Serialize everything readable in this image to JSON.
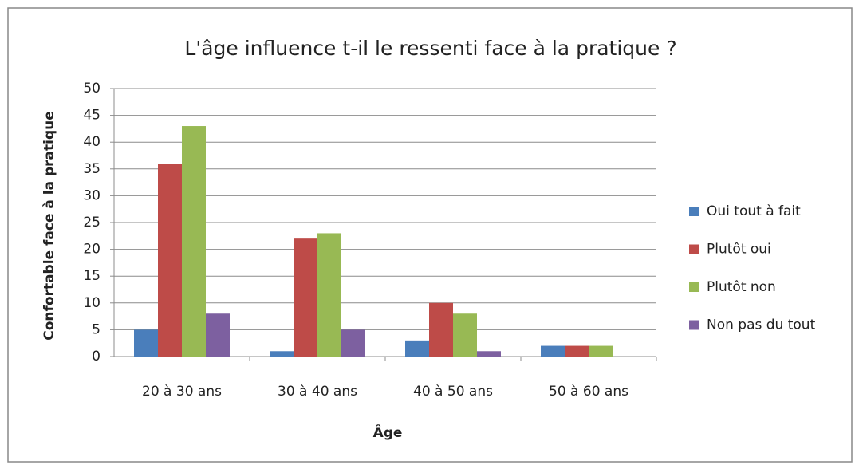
{
  "chart_data": {
    "type": "bar",
    "title": "L'âge influence t-il le ressenti face à la pratique ?",
    "x_label": "Âge",
    "y_label": "Confortable face à la pratique",
    "categories": [
      "20 à 30 ans",
      "30 à 40 ans",
      "40 à 50 ans",
      "50 à 60 ans"
    ],
    "series": [
      {
        "name": "Oui tout à fait",
        "color": "#4a7ebb",
        "values": [
          5,
          1,
          3,
          2
        ]
      },
      {
        "name": "Plutôt oui",
        "color": "#be4b48",
        "values": [
          36,
          22,
          10,
          2
        ]
      },
      {
        "name": "Plutôt non",
        "color": "#98b954",
        "values": [
          43,
          23,
          8,
          2
        ]
      },
      {
        "name": "Non pas du tout",
        "color": "#7d60a0",
        "values": [
          8,
          5,
          1,
          0
        ]
      }
    ],
    "ylim": [
      0,
      50
    ],
    "yticks": [
      0,
      5,
      10,
      15,
      20,
      25,
      30,
      35,
      40,
      45,
      50
    ],
    "grid": true,
    "legend": "right"
  }
}
